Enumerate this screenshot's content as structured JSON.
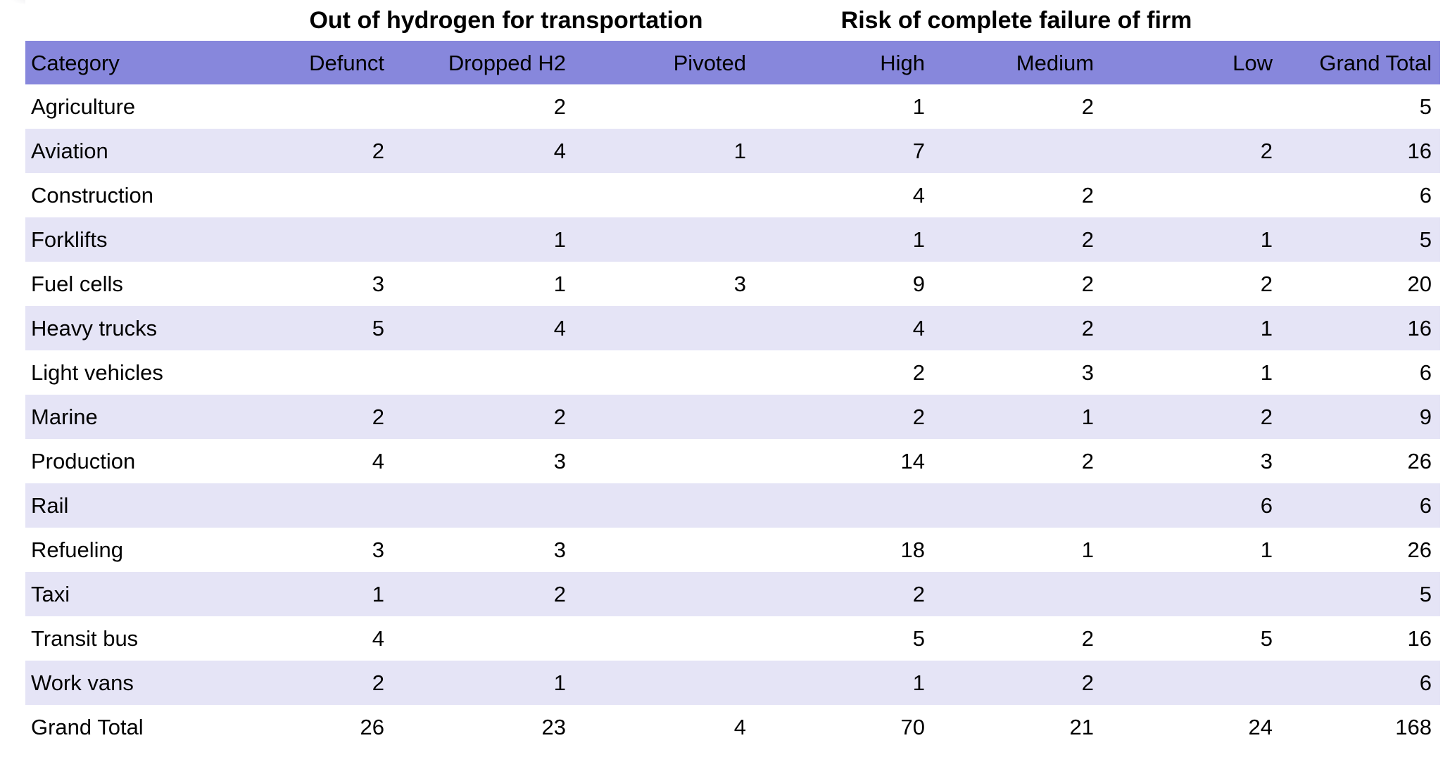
{
  "colors": {
    "background": "#FFFFFF",
    "header_bg": "#8787DC",
    "row_band_bg": "#E5E4F6",
    "text": "#000000"
  },
  "table": {
    "group_headers": [
      "Out of hydrogen for transportation",
      "Risk of complete failure of firm"
    ],
    "columns": [
      "Category",
      "Defunct",
      "Dropped H2",
      "Pivoted",
      "High",
      "Medium",
      "Low",
      "Grand Total"
    ],
    "rows": [
      {
        "category": "Agriculture",
        "cells": [
          "",
          "2",
          "",
          "1",
          "2",
          "",
          "5"
        ]
      },
      {
        "category": "Aviation",
        "cells": [
          "2",
          "4",
          "1",
          "7",
          "",
          "2",
          "16"
        ]
      },
      {
        "category": "Construction",
        "cells": [
          "",
          "",
          "",
          "4",
          "2",
          "",
          "6"
        ]
      },
      {
        "category": "Forklifts",
        "cells": [
          "",
          "1",
          "",
          "1",
          "2",
          "1",
          "5"
        ]
      },
      {
        "category": "Fuel cells",
        "cells": [
          "3",
          "1",
          "3",
          "9",
          "2",
          "2",
          "20"
        ]
      },
      {
        "category": "Heavy trucks",
        "cells": [
          "5",
          "4",
          "",
          "4",
          "2",
          "1",
          "16"
        ]
      },
      {
        "category": "Light vehicles",
        "cells": [
          "",
          "",
          "",
          "2",
          "3",
          "1",
          "6"
        ]
      },
      {
        "category": "Marine",
        "cells": [
          "2",
          "2",
          "",
          "2",
          "1",
          "2",
          "9"
        ]
      },
      {
        "category": "Production",
        "cells": [
          "4",
          "3",
          "",
          "14",
          "2",
          "3",
          "26"
        ]
      },
      {
        "category": "Rail",
        "cells": [
          "",
          "",
          "",
          "",
          "",
          "6",
          "6"
        ]
      },
      {
        "category": "Refueling",
        "cells": [
          "3",
          "3",
          "",
          "18",
          "1",
          "1",
          "26"
        ]
      },
      {
        "category": "Taxi",
        "cells": [
          "1",
          "2",
          "",
          "2",
          "",
          "",
          "5"
        ]
      },
      {
        "category": "Transit bus",
        "cells": [
          "4",
          "",
          "",
          "5",
          "2",
          "5",
          "16"
        ]
      },
      {
        "category": "Work vans",
        "cells": [
          "2",
          "1",
          "",
          "1",
          "2",
          "",
          "6"
        ]
      },
      {
        "category": "Grand Total",
        "cells": [
          "26",
          "23",
          "4",
          "70",
          "21",
          "24",
          "168"
        ]
      }
    ]
  },
  "chart_data": {
    "type": "table",
    "column_groups": [
      {
        "label": "Out of hydrogen for transportation",
        "columns": [
          "Defunct",
          "Dropped H2",
          "Pivoted"
        ]
      },
      {
        "label": "Risk of complete failure of firm",
        "columns": [
          "High",
          "Medium",
          "Low"
        ]
      }
    ],
    "columns": [
      "Category",
      "Defunct",
      "Dropped H2",
      "Pivoted",
      "High",
      "Medium",
      "Low",
      "Grand Total"
    ],
    "rows": [
      [
        "Agriculture",
        null,
        2,
        null,
        1,
        2,
        null,
        5
      ],
      [
        "Aviation",
        2,
        4,
        1,
        7,
        null,
        2,
        16
      ],
      [
        "Construction",
        null,
        null,
        null,
        4,
        2,
        null,
        6
      ],
      [
        "Forklifts",
        null,
        1,
        null,
        1,
        2,
        1,
        5
      ],
      [
        "Fuel cells",
        3,
        1,
        3,
        9,
        2,
        2,
        20
      ],
      [
        "Heavy trucks",
        5,
        4,
        null,
        4,
        2,
        1,
        16
      ],
      [
        "Light vehicles",
        null,
        null,
        null,
        2,
        3,
        1,
        6
      ],
      [
        "Marine",
        2,
        2,
        null,
        2,
        1,
        2,
        9
      ],
      [
        "Production",
        4,
        3,
        null,
        14,
        2,
        3,
        26
      ],
      [
        "Rail",
        null,
        null,
        null,
        null,
        null,
        6,
        6
      ],
      [
        "Refueling",
        3,
        3,
        null,
        18,
        1,
        1,
        26
      ],
      [
        "Taxi",
        1,
        2,
        null,
        2,
        null,
        null,
        5
      ],
      [
        "Transit bus",
        4,
        null,
        null,
        5,
        2,
        5,
        16
      ],
      [
        "Work vans",
        2,
        1,
        null,
        1,
        2,
        null,
        6
      ],
      [
        "Grand Total",
        26,
        23,
        4,
        70,
        21,
        24,
        168
      ]
    ]
  }
}
